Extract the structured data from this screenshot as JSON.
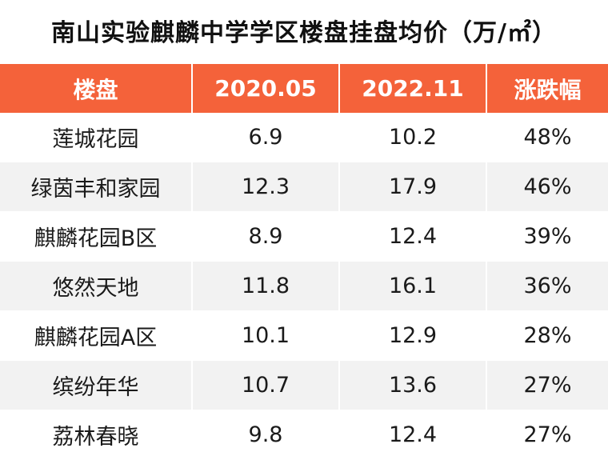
{
  "chart_data": {
    "type": "table",
    "title": "南山实验麒麟中学学区楼盘挂盘均价（万/㎡）",
    "columns": [
      "楼盘",
      "2020.05",
      "2022.11",
      "涨跌幅"
    ],
    "rows": [
      [
        "莲城花园",
        "6.9",
        "10.2",
        "48%"
      ],
      [
        "绿茵丰和家园",
        "12.3",
        "17.9",
        "46%"
      ],
      [
        "麒麟花园B区",
        "8.9",
        "12.4",
        "39%"
      ],
      [
        "悠然天地",
        "11.8",
        "16.1",
        "36%"
      ],
      [
        "麒麟花园A区",
        "10.1",
        "12.9",
        "28%"
      ],
      [
        "缤纷年华",
        "10.7",
        "13.6",
        "27%"
      ],
      [
        "荔林春晓",
        "9.8",
        "12.4",
        "27%"
      ]
    ]
  },
  "colors": {
    "header_bg": "#f4623a",
    "header_text": "#ffffff",
    "row_alt_bg": "#f2f2f2"
  }
}
